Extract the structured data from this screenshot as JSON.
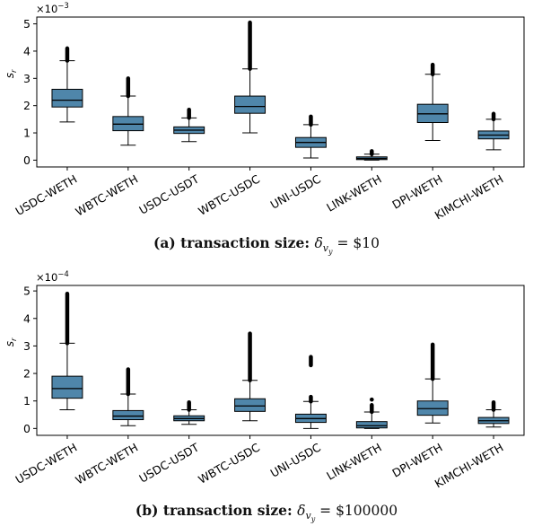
{
  "chart_data": [
    {
      "type": "box",
      "panel_label": "(a)",
      "caption_prefix": "transaction size: ",
      "caption_value": "$10",
      "ylabel": "s",
      "ylabel_sub": "r",
      "y_multiplier_base": "×10",
      "y_multiplier_exp": "−3",
      "ylim": [
        -0.25,
        5.25
      ],
      "yticks": [
        0,
        1,
        2,
        3,
        4,
        5
      ],
      "box_color": "#4f86aa",
      "categories": [
        "USDC-WETH",
        "WBTC-WETH",
        "USDC-USDT",
        "WBTC-USDC",
        "UNI-USDC",
        "LINK-WETH",
        "DPI-WETH",
        "KIMCHI-WETH"
      ],
      "series": [
        {
          "whisker_low": 1.4,
          "q1": 1.95,
          "median": 2.2,
          "q3": 2.6,
          "whisker_high": 3.65,
          "outlier_high": 4.1
        },
        {
          "whisker_low": 0.55,
          "q1": 1.08,
          "median": 1.32,
          "q3": 1.6,
          "whisker_high": 2.35,
          "outlier_high": 3.0
        },
        {
          "whisker_low": 0.68,
          "q1": 0.98,
          "median": 1.1,
          "q3": 1.22,
          "whisker_high": 1.55,
          "outlier_high": 1.85
        },
        {
          "whisker_low": 1.0,
          "q1": 1.72,
          "median": 1.97,
          "q3": 2.35,
          "whisker_high": 3.35,
          "outlier_high": 5.05
        },
        {
          "whisker_low": 0.08,
          "q1": 0.47,
          "median": 0.65,
          "q3": 0.83,
          "whisker_high": 1.3,
          "outlier_high": 1.6
        },
        {
          "whisker_low": 0.0,
          "q1": 0.02,
          "median": 0.06,
          "q3": 0.12,
          "whisker_high": 0.22,
          "outlier_high": 0.33
        },
        {
          "whisker_low": 0.72,
          "q1": 1.38,
          "median": 1.7,
          "q3": 2.05,
          "whisker_high": 3.15,
          "outlier_high": 3.5
        },
        {
          "whisker_low": 0.38,
          "q1": 0.78,
          "median": 0.92,
          "q3": 1.07,
          "whisker_high": 1.5,
          "outlier_high": 1.7
        }
      ]
    },
    {
      "type": "box",
      "panel_label": "(b)",
      "caption_prefix": "transaction size: ",
      "caption_value": "$100000",
      "ylabel": "s",
      "ylabel_sub": "r",
      "y_multiplier_base": "×10",
      "y_multiplier_exp": "−4",
      "ylim": [
        -0.25,
        5.2
      ],
      "yticks": [
        0,
        1,
        2,
        3,
        4,
        5
      ],
      "box_color": "#4f86aa",
      "categories": [
        "USDC-WETH",
        "WBTC-WETH",
        "USDC-USDT",
        "WBTC-USDC",
        "UNI-USDC",
        "LINK-WETH",
        "DPI-WETH",
        "KIMCHI-WETH"
      ],
      "series": [
        {
          "whisker_low": 0.68,
          "q1": 1.1,
          "median": 1.45,
          "q3": 1.9,
          "whisker_high": 3.1,
          "outlier_high": 4.9
        },
        {
          "whisker_low": 0.1,
          "q1": 0.32,
          "median": 0.45,
          "q3": 0.65,
          "whisker_high": 1.25,
          "outlier_high": 2.15
        },
        {
          "whisker_low": 0.15,
          "q1": 0.28,
          "median": 0.36,
          "q3": 0.46,
          "whisker_high": 0.68,
          "outlier_high": 0.95
        },
        {
          "whisker_low": 0.28,
          "q1": 0.62,
          "median": 0.82,
          "q3": 1.08,
          "whisker_high": 1.75,
          "outlier_high": 3.45
        },
        {
          "whisker_low": 0.0,
          "q1": 0.22,
          "median": 0.36,
          "q3": 0.52,
          "whisker_high": 0.98,
          "outlier_high": 1.15,
          "outlier_cluster": [
            2.3,
            2.6
          ]
        },
        {
          "whisker_low": 0.0,
          "q1": 0.02,
          "median": 0.1,
          "q3": 0.25,
          "whisker_high": 0.6,
          "outlier_high": 0.85,
          "outlier_extra": 1.05
        },
        {
          "whisker_low": 0.2,
          "q1": 0.48,
          "median": 0.72,
          "q3": 1.0,
          "whisker_high": 1.8,
          "outlier_high": 3.05
        },
        {
          "whisker_low": 0.05,
          "q1": 0.18,
          "median": 0.28,
          "q3": 0.4,
          "whisker_high": 0.68,
          "outlier_high": 0.95
        }
      ]
    }
  ]
}
